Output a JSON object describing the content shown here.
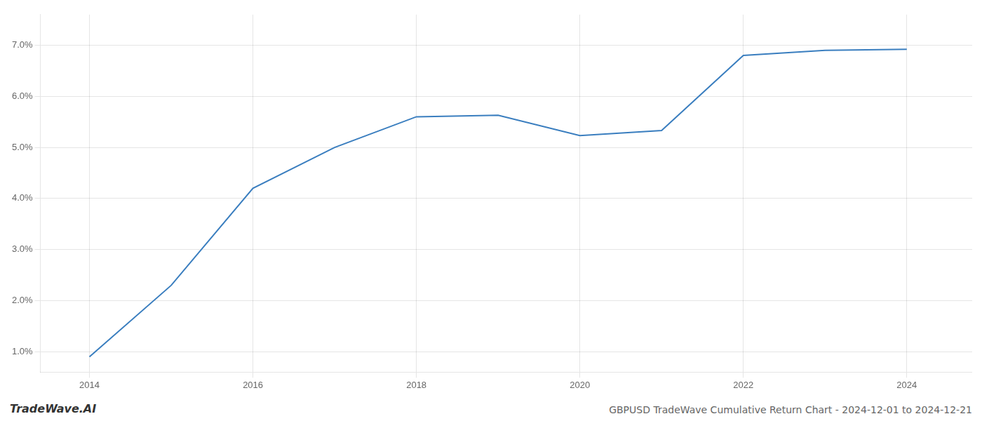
{
  "chart_data": {
    "type": "line",
    "title": "GBPUSD TradeWave Cumulative Return Chart - 2024-12-01 to 2024-12-21",
    "annotations": [
      "TradeWave.AI"
    ],
    "x": [
      2014,
      2015,
      2016,
      2017,
      2018,
      2019,
      2020,
      2021,
      2022,
      2023,
      2024
    ],
    "values": [
      0.009,
      0.023,
      0.042,
      0.05,
      0.056,
      0.0563,
      0.0523,
      0.0533,
      0.068,
      0.069,
      0.0692
    ],
    "color": "#3a7ebf",
    "xlim": [
      2013.4,
      2024.8
    ],
    "xticks": [
      2014,
      2016,
      2018,
      2020,
      2022,
      2024
    ],
    "ylim": [
      0.006,
      0.076
    ],
    "yticks": [
      {
        "value": 0.01,
        "label": "1.0%"
      },
      {
        "value": 0.02,
        "label": "2.0%"
      },
      {
        "value": 0.03,
        "label": "3.0%"
      },
      {
        "value": 0.04,
        "label": "4.0%"
      },
      {
        "value": 0.05,
        "label": "5.0%"
      },
      {
        "value": 0.06,
        "label": "6.0%"
      },
      {
        "value": 0.07,
        "label": "7.0%"
      }
    ],
    "grid": true
  }
}
